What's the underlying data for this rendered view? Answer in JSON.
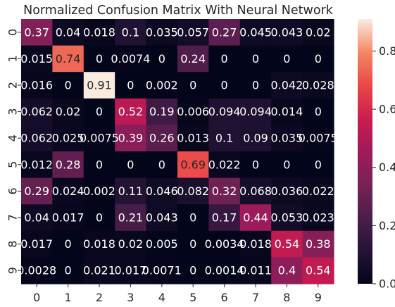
{
  "chart_data": {
    "type": "heatmap",
    "title": "Normalized Confusion Matrix With Neural Network",
    "xlabel": "",
    "ylabel": "",
    "x_categories": [
      "0",
      "1",
      "2",
      "3",
      "4",
      "5",
      "6",
      "7",
      "8",
      "9"
    ],
    "y_categories": [
      "0",
      "1",
      "2",
      "3",
      "4",
      "5",
      "6",
      "7",
      "8",
      "9"
    ],
    "cells": [
      [
        "0.37",
        "0.04",
        "0.018",
        "0.1",
        "0.035",
        "0.057",
        "0.27",
        "0.045",
        "0.043",
        "0.02"
      ],
      [
        "0.015",
        "0.74",
        "0",
        "0.0074",
        "0",
        "0.24",
        "0",
        "0",
        "0",
        "0"
      ],
      [
        "0.016",
        "0",
        "0.91",
        "0",
        "0.002",
        "0",
        "0",
        "0",
        "0.042",
        "0.028"
      ],
      [
        "0.062",
        "0.02",
        "0",
        "0.52",
        "0.19",
        "0.006",
        "0.094",
        "0.094",
        "0.014",
        "0"
      ],
      [
        "0.062",
        "0.025",
        "0.0075",
        "0.39",
        "0.26",
        "0.013",
        "0.1",
        "0.09",
        "0.035",
        "0.0075"
      ],
      [
        "0.012",
        "0.28",
        "0",
        "0",
        "0",
        "0.69",
        "0.022",
        "0",
        "0",
        "0"
      ],
      [
        "0.29",
        "0.024",
        "0.002",
        "0.11",
        "0.046",
        "0.082",
        "0.32",
        "0.068",
        "0.036",
        "0.022"
      ],
      [
        "0.04",
        "0.017",
        "0",
        "0.21",
        "0.043",
        "0",
        "0.17",
        "0.44",
        "0.053",
        "0.023"
      ],
      [
        "0.017",
        "0",
        "0.018",
        "0.02",
        "0.005",
        "0",
        "0.0034",
        "0.018",
        "0.54",
        "0.38"
      ],
      [
        "0.0028",
        "0",
        "0.021",
        "0.017",
        "0.0071",
        "0",
        "0.0014",
        "0.011",
        "0.4",
        "0.54"
      ]
    ],
    "colorbar": {
      "colormap": "rocket",
      "range": [
        0,
        0.91
      ],
      "ticks": [
        "0.0",
        "0.2",
        "0.4",
        "0.6",
        "0.8"
      ]
    },
    "grid": false,
    "legend": "colorbar-right"
  }
}
